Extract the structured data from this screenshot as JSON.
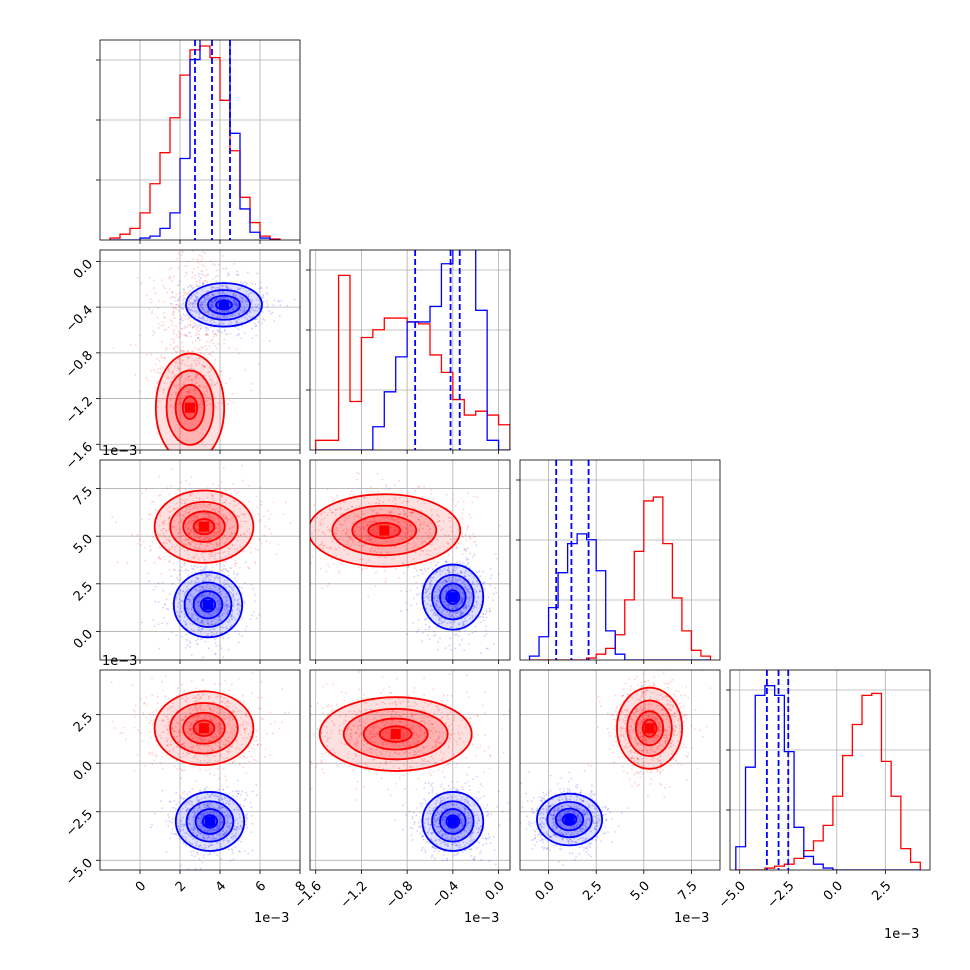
{
  "chart_data": {
    "type": "corner",
    "title": "",
    "colors": {
      "series_a": "#ff0000",
      "series_b": "#0000ff",
      "grid": "#b0b0b0",
      "frame": "#000000"
    },
    "multiplier_labels": [
      "1e−3",
      "1e−3",
      "1e−3",
      "1e−3",
      "1e−3",
      "1e−3"
    ],
    "parameters": [
      {
        "range": [
          -2,
          8
        ],
        "ticks": [
          0,
          2,
          4,
          6,
          8
        ],
        "tick_labels": [
          "0",
          "2",
          "4",
          "6",
          "8"
        ]
      },
      {
        "range": [
          -1.65,
          0.1
        ],
        "ticks": [
          -1.6,
          -1.2,
          -0.8,
          -0.4,
          0.0
        ],
        "tick_labels": [
          "−1.6",
          "−1.2",
          "−0.8",
          "−0.4",
          "0.0"
        ]
      },
      {
        "range": [
          -1.5,
          9.0
        ],
        "ticks": [
          0.0,
          2.5,
          5.0,
          7.5
        ],
        "tick_labels": [
          "0.0",
          "2.5",
          "5.0",
          "7.5"
        ]
      },
      {
        "range": [
          -5.5,
          4.8
        ],
        "ticks": [
          -5.0,
          -2.5,
          0.0,
          2.5
        ],
        "tick_labels": [
          "−5.0",
          "−2.5",
          "0.0",
          "2.5"
        ]
      }
    ],
    "diagonal": [
      {
        "bin_edges": [
          -1.5,
          -1.0,
          -0.5,
          0.0,
          0.5,
          1.0,
          1.5,
          2.0,
          2.5,
          3.0,
          3.5,
          4.0,
          4.5,
          5.0,
          5.5,
          6.0,
          6.5,
          7.0
        ],
        "series_a_counts": [
          0.01,
          0.03,
          0.06,
          0.14,
          0.29,
          0.45,
          0.63,
          0.85,
          0.98,
          1.0,
          0.94,
          0.72,
          0.46,
          0.22,
          0.09,
          0.02,
          0.005
        ],
        "series_b_counts": [
          0,
          0,
          0,
          0.01,
          0.02,
          0.06,
          0.14,
          0.42,
          0.93,
          1.28,
          1.3,
          1.06,
          0.55,
          0.16,
          0.04,
          0.01,
          0
        ],
        "quantile_lines": [
          2.75,
          3.6,
          4.5
        ]
      },
      {
        "bin_edges": [
          -1.6,
          -1.5,
          -1.4,
          -1.3,
          -1.2,
          -1.1,
          -1.0,
          -0.9,
          -0.8,
          -0.7,
          -0.6,
          -0.5,
          -0.4,
          -0.3,
          -0.2,
          -0.1,
          0.0,
          0.1
        ],
        "series_a_counts": [
          0.05,
          0.05,
          0.9,
          0.25,
          0.58,
          0.62,
          0.68,
          0.68,
          0.66,
          0.65,
          0.49,
          0.4,
          0.26,
          0.18,
          0.2,
          0.18,
          0.13
        ],
        "series_b_counts": [
          0,
          0,
          0,
          0,
          0,
          0.12,
          0.3,
          0.48,
          0.66,
          0.66,
          0.74,
          0.96,
          1.15,
          1.3,
          0.72,
          0.05,
          0
        ],
        "quantile_lines": [
          -0.73,
          -0.42,
          -0.34
        ]
      },
      {
        "bin_edges": [
          -1.0,
          -0.5,
          0.0,
          0.5,
          1.0,
          1.5,
          2.0,
          2.5,
          3.0,
          3.5,
          4.0,
          4.5,
          5.0,
          5.5,
          6.0,
          6.5,
          7.0,
          7.5,
          8.0,
          8.5
        ],
        "series_a_counts": [
          0,
          0,
          0,
          0,
          0,
          0,
          0.01,
          0.03,
          0.06,
          0.13,
          0.31,
          0.56,
          0.82,
          0.84,
          0.6,
          0.32,
          0.15,
          0.05,
          0.02
        ],
        "series_b_counts": [
          0.02,
          0.12,
          0.27,
          0.45,
          0.6,
          0.65,
          0.62,
          0.46,
          0.15,
          0.03,
          0,
          0,
          0,
          0,
          0,
          0,
          0,
          0,
          0
        ],
        "quantile_lines": [
          0.4,
          1.2,
          2.1
        ]
      },
      {
        "bin_edges": [
          -5.2,
          -4.7,
          -4.2,
          -3.7,
          -3.2,
          -2.7,
          -2.2,
          -1.7,
          -1.2,
          -0.7,
          -0.2,
          0.3,
          0.8,
          1.3,
          1.8,
          2.3,
          2.8,
          3.3,
          3.8,
          4.3
        ],
        "series_a_counts": [
          0,
          0,
          0,
          0.01,
          0.02,
          0.03,
          0.06,
          0.1,
          0.15,
          0.23,
          0.38,
          0.59,
          0.75,
          0.9,
          0.91,
          0.56,
          0.38,
          0.11,
          0.04
        ],
        "series_b_counts": [
          0.12,
          0.53,
          0.9,
          0.95,
          0.9,
          0.61,
          0.22,
          0.07,
          0.03,
          0.01,
          0,
          0,
          0,
          0,
          0,
          0,
          0,
          0,
          0
        ],
        "quantile_lines": [
          -3.6,
          -3.0,
          -2.5
        ]
      }
    ],
    "pairs": [
      {
        "row": 1,
        "col": 0,
        "series_a": {
          "mode": [
            2.5,
            -1.28
          ],
          "shape": "curved",
          "spread": [
            0.9,
            0.25
          ]
        },
        "series_b": {
          "mode": [
            4.2,
            -0.38
          ],
          "spread": [
            1.0,
            0.1
          ]
        }
      },
      {
        "row": 2,
        "col": 0,
        "series_a": {
          "mode": [
            3.2,
            5.5
          ],
          "spread": [
            1.3,
            1.0
          ]
        },
        "series_b": {
          "mode": [
            3.4,
            1.4
          ],
          "spread": [
            0.9,
            0.9
          ]
        }
      },
      {
        "row": 2,
        "col": 1,
        "series_a": {
          "mode": [
            -1.0,
            5.3
          ],
          "spread": [
            0.35,
            1.0
          ]
        },
        "series_b": {
          "mode": [
            -0.4,
            1.8
          ],
          "spread": [
            0.14,
            0.9
          ]
        }
      },
      {
        "row": 3,
        "col": 0,
        "series_a": {
          "mode": [
            3.2,
            1.8
          ],
          "spread": [
            1.3,
            1.0
          ]
        },
        "series_b": {
          "mode": [
            3.5,
            -3.0
          ],
          "spread": [
            0.9,
            0.8
          ]
        }
      },
      {
        "row": 3,
        "col": 1,
        "series_a": {
          "mode": [
            -0.9,
            1.5
          ],
          "spread": [
            0.35,
            1.0
          ]
        },
        "series_b": {
          "mode": [
            -0.4,
            -3.0
          ],
          "spread": [
            0.14,
            0.8
          ]
        }
      },
      {
        "row": 3,
        "col": 2,
        "series_a": {
          "mode": [
            5.3,
            1.8
          ],
          "spread": [
            0.9,
            1.1
          ]
        },
        "series_b": {
          "mode": [
            1.1,
            -2.9
          ],
          "spread": [
            0.9,
            0.7
          ]
        }
      }
    ]
  }
}
